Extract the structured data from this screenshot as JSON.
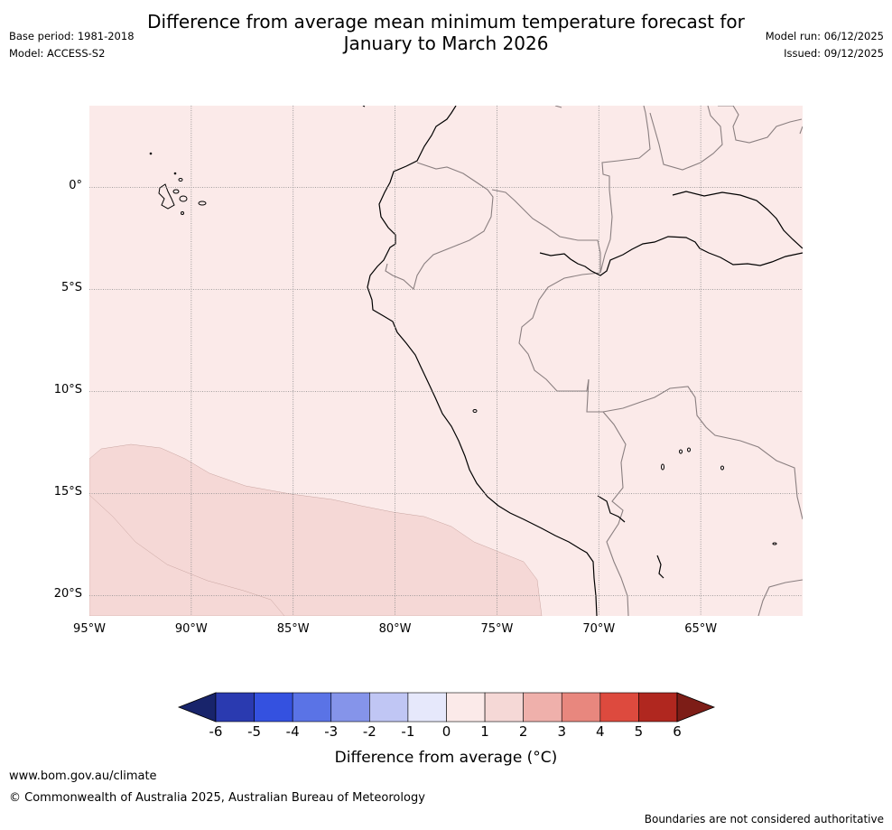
{
  "header": {
    "title_line1": "Difference from average mean minimum temperature forecast for",
    "title_line2": "January to March 2026",
    "base_period": "Base period: 1981-2018",
    "model": "Model: ACCESS-S2",
    "model_run": "Model run: 06/12/2025",
    "issued": "Issued: 09/12/2025"
  },
  "map": {
    "lon_range": [
      -95,
      -60
    ],
    "lat_range": [
      4,
      -21
    ],
    "latitude_labels": [
      "0°",
      "5°S",
      "10°S",
      "15°S",
      "20°S"
    ],
    "latitude_values": [
      0,
      -5,
      -10,
      -15,
      -20
    ],
    "longitude_labels": [
      "95°W",
      "90°W",
      "85°W",
      "80°W",
      "75°W",
      "70°W",
      "65°W"
    ],
    "longitude_values": [
      -95,
      -90,
      -85,
      -80,
      -75,
      -70,
      -65
    ],
    "background_category": "0 to 1",
    "region_category": "1 to 2"
  },
  "legend": {
    "ticks": [
      "-6",
      "-5",
      "-4",
      "-3",
      "-2",
      "-1",
      "0",
      "1",
      "2",
      "3",
      "4",
      "5",
      "6"
    ],
    "colors": [
      "#18246b",
      "#2a3ab0",
      "#3451e0",
      "#5a73e6",
      "#8594ea",
      "#c0c6f4",
      "#e6e8fb",
      "#fbeae9",
      "#f5d8d6",
      "#efb0ab",
      "#e8877e",
      "#dd4a3e",
      "#b0271f",
      "#7d1d17"
    ],
    "label": "Difference from average (°C)"
  },
  "footer": {
    "url": "www.bom.gov.au/climate",
    "copyright": "© Commonwealth of Australia 2025, Australian Bureau of Meteorology",
    "disclaimer": "Boundaries are not considered authoritative"
  }
}
